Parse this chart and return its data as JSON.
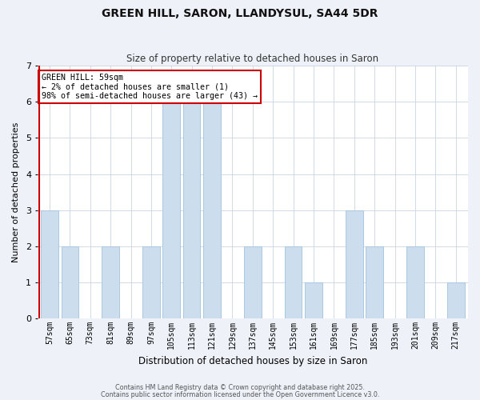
{
  "title": "GREEN HILL, SARON, LLANDYSUL, SA44 5DR",
  "subtitle": "Size of property relative to detached houses in Saron",
  "xlabel": "Distribution of detached houses by size in Saron",
  "ylabel": "Number of detached properties",
  "footer_line1": "Contains HM Land Registry data © Crown copyright and database right 2025.",
  "footer_line2": "Contains public sector information licensed under the Open Government Licence v3.0.",
  "annotation_title": "GREEN HILL: 59sqm",
  "annotation_line1": "← 2% of detached houses are smaller (1)",
  "annotation_line2": "98% of semi-detached houses are larger (43) →",
  "bar_color": "#ccdded",
  "bar_edge_color": "#aac8e0",
  "highlight_line_color": "#cc0000",
  "annotation_box_edge_color": "#cc0000",
  "bins": [
    "57sqm",
    "65sqm",
    "73sqm",
    "81sqm",
    "89sqm",
    "97sqm",
    "105sqm",
    "113sqm",
    "121sqm",
    "129sqm",
    "137sqm",
    "145sqm",
    "153sqm",
    "161sqm",
    "169sqm",
    "177sqm",
    "185sqm",
    "193sqm",
    "201sqm",
    "209sqm",
    "217sqm"
  ],
  "values": [
    3,
    2,
    0,
    2,
    0,
    2,
    6,
    6,
    6,
    0,
    2,
    0,
    2,
    1,
    0,
    3,
    2,
    0,
    2,
    0,
    1
  ],
  "ylim": [
    0,
    7
  ],
  "yticks": [
    0,
    1,
    2,
    3,
    4,
    5,
    6,
    7
  ],
  "background_color": "#eef2f8",
  "plot_background_color": "#ffffff",
  "grid_color": "#c8d4e0"
}
